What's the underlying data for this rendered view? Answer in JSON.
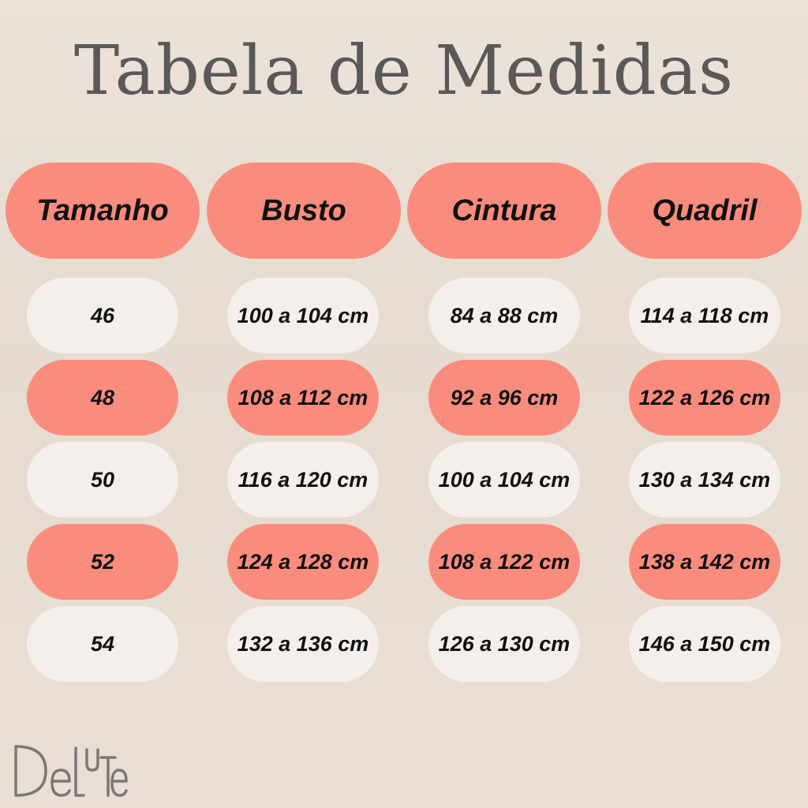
{
  "title": "Tabela de Medidas",
  "colors": {
    "accent": "#fa8c7d",
    "light_pill": "#f4efea",
    "text": "#111111",
    "title_text": "#5a5858",
    "logo": "#7a7877"
  },
  "headers": [
    "Tamanho",
    "Busto",
    "Cintura",
    "Quadril"
  ],
  "rows": [
    {
      "tamanho": "46",
      "busto": "100 a 104 cm",
      "cintura": "84 a 88 cm",
      "quadril": "114 a 118 cm",
      "highlight": false
    },
    {
      "tamanho": "48",
      "busto": "108 a 112 cm",
      "cintura": "92 a 96 cm",
      "quadril": "122 a 126 cm",
      "highlight": true
    },
    {
      "tamanho": "50",
      "busto": "116 a 120 cm",
      "cintura": "100 a 104 cm",
      "quadril": "130 a 134 cm",
      "highlight": false
    },
    {
      "tamanho": "52",
      "busto": "124 a 128 cm",
      "cintura": "108 a 122 cm",
      "quadril": "138 a 142 cm",
      "highlight": true
    },
    {
      "tamanho": "54",
      "busto": "132 a 136 cm",
      "cintura": "126 a 130 cm",
      "quadril": "146 a 150 cm",
      "highlight": false
    }
  ],
  "brand": {
    "name": "DeLuTe",
    "icon": "delute-logo"
  }
}
